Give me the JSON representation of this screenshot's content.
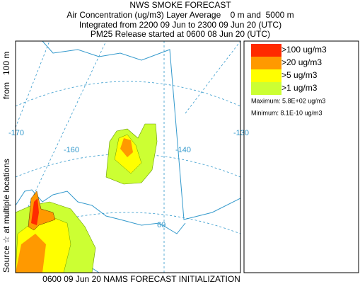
{
  "header": {
    "title": "NWS SMOKE FORECAST",
    "lines": [
      "Air Concentration (ug/m3) Layer Average    0 m and  5000 m",
      "Integrated from 2200 09 Jun to 2300 09 Jun 20 (UTC)",
      "PM25 Release started at 0600 08 Jun 20 (UTC)"
    ]
  },
  "legend": {
    "items": [
      {
        "label": ">100 ug/m3",
        "color": "#ff2a00"
      },
      {
        "label": ">20 ug/m3",
        "color": "#ff9900"
      },
      {
        "label": ">5 ug/m3",
        "color": "#ffff00"
      },
      {
        "label": ">1 ug/m3",
        "color": "#ccff33"
      }
    ],
    "maximum": "Maximum: 5.8E+02 ug/m3",
    "minimum": "Minimum: 8.1E-10 ug/m3"
  },
  "side_label": {
    "source": "Source ☆ at multiple locations",
    "height": "from   100 m"
  },
  "footer": "0600 09 Jun 20 NAMS FORECAST INITIALIZATION",
  "map": {
    "graticule_labels": [
      "-170",
      "-160",
      "-140",
      "-130",
      "60"
    ]
  }
}
